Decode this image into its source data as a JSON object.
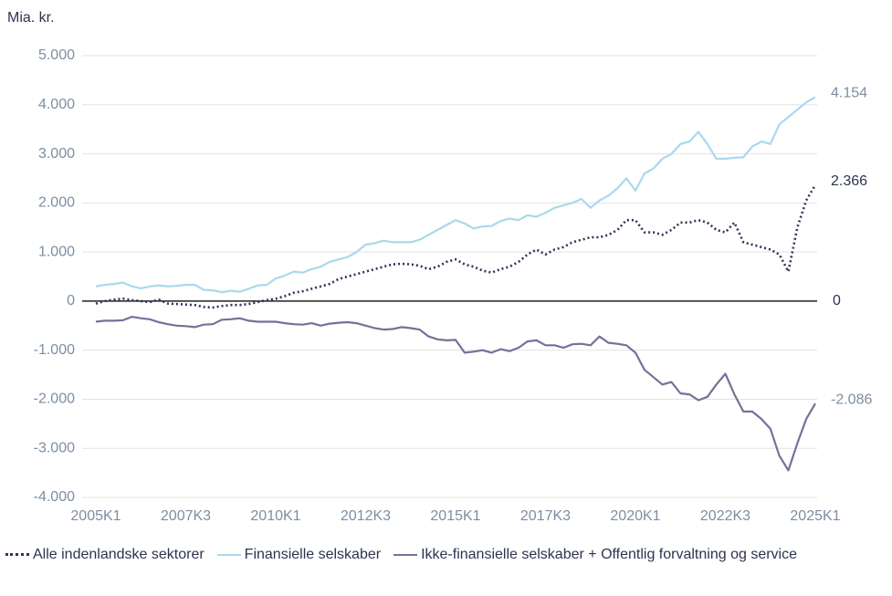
{
  "chart_data": {
    "type": "line",
    "y_label": "Mia. kr.",
    "categories": [
      "2005K1",
      null,
      null,
      null,
      null,
      null,
      null,
      null,
      null,
      null,
      "2007K3",
      null,
      null,
      null,
      null,
      null,
      null,
      null,
      null,
      null,
      "2010K1",
      null,
      null,
      null,
      null,
      null,
      null,
      null,
      null,
      null,
      "2012K3",
      null,
      null,
      null,
      null,
      null,
      null,
      null,
      null,
      null,
      "2015K1",
      null,
      null,
      null,
      null,
      null,
      null,
      null,
      null,
      null,
      "2017K3",
      null,
      null,
      null,
      null,
      null,
      null,
      null,
      null,
      null,
      "2020K1",
      null,
      null,
      null,
      null,
      null,
      null,
      null,
      null,
      null,
      "2022K3",
      null,
      null,
      null,
      null,
      null,
      null,
      null,
      null,
      null,
      "2025K1"
    ],
    "ylim": [
      -4000,
      5000
    ],
    "yticks": [
      {
        "value": -4000,
        "label": "-4.000"
      },
      {
        "value": -3000,
        "label": "-3.000"
      },
      {
        "value": -2000,
        "label": "-2.000"
      },
      {
        "value": -1000,
        "label": "-1.000"
      },
      0,
      {
        "value": 1000,
        "label": "1.000"
      },
      {
        "value": 2000,
        "label": "2.000"
      },
      {
        "value": 3000,
        "label": "3.000"
      },
      {
        "value": 4000,
        "label": "4.000"
      },
      {
        "value": 5000,
        "label": "5.000"
      }
    ],
    "grid": true,
    "reference_line": 0,
    "series": [
      {
        "name": "Alle indenlandske sektorer",
        "color": "#2d3557",
        "style": "dotted",
        "values": [
          -50,
          0,
          30,
          50,
          20,
          0,
          -20,
          30,
          -50,
          -60,
          -70,
          -80,
          -120,
          -130,
          -100,
          -80,
          -80,
          -60,
          -20,
          20,
          50,
          100,
          170,
          200,
          250,
          300,
          350,
          450,
          500,
          550,
          600,
          650,
          700,
          750,
          760,
          750,
          720,
          650,
          700,
          800,
          850,
          750,
          700,
          620,
          580,
          650,
          700,
          800,
          950,
          1050,
          950,
          1050,
          1100,
          1200,
          1250,
          1300,
          1300,
          1350,
          1450,
          1650,
          1650,
          1400,
          1400,
          1350,
          1450,
          1600,
          1600,
          1650,
          1600,
          1450,
          1400,
          1600,
          1200,
          1150,
          1100,
          1050,
          950,
          600,
          1500,
          2050,
          2366
        ],
        "value_labels": [
          null,
          null,
          null,
          null,
          null,
          null,
          null,
          null,
          null,
          null,
          null,
          null,
          null,
          null,
          null,
          null,
          null,
          null,
          null,
          null,
          null,
          null,
          null,
          null,
          null,
          null,
          null,
          null,
          null,
          null,
          null,
          null,
          null,
          null,
          null,
          null,
          null,
          null,
          null,
          null,
          null,
          null,
          null,
          null,
          null,
          null,
          null,
          null,
          null,
          null,
          null,
          null,
          null,
          null,
          null,
          null,
          null,
          null,
          null,
          null,
          null,
          null,
          null,
          null,
          null,
          null,
          null,
          null,
          null,
          null,
          null,
          null,
          null,
          null,
          null,
          null,
          null,
          null,
          null,
          null,
          "2.366"
        ]
      },
      {
        "name": "Finansielle selskaber",
        "color": "#a9d9ec",
        "style": "solid",
        "values": [
          300,
          330,
          350,
          380,
          300,
          260,
          300,
          320,
          300,
          310,
          330,
          330,
          230,
          220,
          180,
          210,
          190,
          250,
          320,
          330,
          460,
          520,
          600,
          580,
          650,
          700,
          800,
          850,
          900,
          1000,
          1150,
          1180,
          1230,
          1200,
          1200,
          1200,
          1250,
          1350,
          1450,
          1550,
          1650,
          1580,
          1480,
          1520,
          1530,
          1630,
          1680,
          1650,
          1750,
          1720,
          1800,
          1900,
          1950,
          2000,
          2080,
          1900,
          2050,
          2150,
          2300,
          2500,
          2250,
          2600,
          2700,
          2900,
          3000,
          3200,
          3250,
          3450,
          3200,
          2900,
          2900,
          2920,
          2930,
          3150,
          3250,
          3200,
          3600,
          3750,
          3900,
          4050,
          4154
        ],
        "value_labels": [
          null,
          null,
          null,
          null,
          null,
          null,
          null,
          null,
          null,
          null,
          null,
          null,
          null,
          null,
          null,
          null,
          null,
          null,
          null,
          null,
          null,
          null,
          null,
          null,
          null,
          null,
          null,
          null,
          null,
          null,
          null,
          null,
          null,
          null,
          null,
          null,
          null,
          null,
          null,
          null,
          null,
          null,
          null,
          null,
          null,
          null,
          null,
          null,
          null,
          null,
          null,
          null,
          null,
          null,
          null,
          null,
          null,
          null,
          null,
          null,
          null,
          null,
          null,
          null,
          null,
          null,
          null,
          null,
          null,
          null,
          null,
          null,
          null,
          null,
          null,
          null,
          null,
          null,
          null,
          null,
          "4.154"
        ]
      },
      {
        "name": "Ikke-finansielle selskaber + Offentlig forvaltning og service",
        "color": "#72729a",
        "style": "solid",
        "values": [
          -420,
          -400,
          -400,
          -390,
          -320,
          -350,
          -370,
          -430,
          -470,
          -500,
          -510,
          -530,
          -480,
          -470,
          -380,
          -370,
          -350,
          -400,
          -420,
          -420,
          -420,
          -450,
          -470,
          -480,
          -450,
          -500,
          -460,
          -440,
          -430,
          -450,
          -500,
          -550,
          -580,
          -570,
          -530,
          -550,
          -580,
          -720,
          -780,
          -800,
          -790,
          -1050,
          -1030,
          -1000,
          -1050,
          -980,
          -1020,
          -950,
          -820,
          -800,
          -900,
          -900,
          -950,
          -880,
          -870,
          -900,
          -720,
          -850,
          -870,
          -900,
          -1050,
          -1400,
          -1550,
          -1700,
          -1650,
          -1880,
          -1900,
          -2020,
          -1950,
          -1700,
          -1480,
          -1900,
          -2250,
          -2250,
          -2400,
          -2600,
          -3150,
          -3450,
          -2900,
          -2400,
          -2086
        ],
        "value_labels": [
          null,
          null,
          null,
          null,
          null,
          null,
          null,
          null,
          null,
          null,
          null,
          null,
          null,
          null,
          null,
          null,
          null,
          null,
          null,
          null,
          null,
          null,
          null,
          null,
          null,
          null,
          null,
          null,
          null,
          null,
          null,
          null,
          null,
          null,
          null,
          null,
          null,
          null,
          null,
          null,
          null,
          null,
          null,
          null,
          null,
          null,
          null,
          null,
          null,
          null,
          null,
          null,
          null,
          null,
          null,
          null,
          null,
          null,
          null,
          null,
          null,
          null,
          null,
          null,
          null,
          null,
          null,
          null,
          null,
          null,
          null,
          null,
          null,
          null,
          null,
          null,
          null,
          null,
          null,
          null,
          "-2.086"
        ]
      }
    ]
  }
}
